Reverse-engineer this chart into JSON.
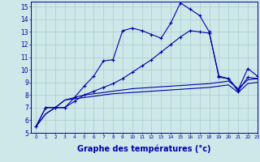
{
  "background_color": "#cce8e8",
  "grid_color": "#aacccc",
  "line_color": "#0000aa",
  "xlabel": "Graphe des températures (°c)",
  "xlabel_fontsize": 7,
  "xlim": [
    -0.5,
    23
  ],
  "ylim": [
    5,
    15.4
  ],
  "yticks": [
    5,
    6,
    7,
    8,
    9,
    10,
    11,
    12,
    13,
    14,
    15
  ],
  "xticks": [
    0,
    1,
    2,
    3,
    4,
    5,
    6,
    7,
    8,
    9,
    10,
    11,
    12,
    13,
    14,
    15,
    16,
    17,
    18,
    19,
    20,
    21,
    22,
    23
  ],
  "hours": [
    0,
    1,
    2,
    3,
    4,
    5,
    6,
    7,
    8,
    9,
    10,
    11,
    12,
    13,
    14,
    15,
    16,
    17,
    18,
    19,
    20,
    21,
    22,
    23
  ],
  "line1": [
    5.5,
    7.0,
    7.0,
    7.0,
    7.8,
    8.7,
    9.5,
    10.7,
    10.8,
    13.1,
    13.3,
    13.1,
    12.8,
    12.5,
    13.7,
    15.3,
    14.8,
    14.3,
    13.0,
    9.4,
    9.3,
    8.4,
    10.1,
    9.5
  ],
  "line2": [
    5.5,
    7.0,
    7.0,
    7.0,
    7.5,
    8.0,
    8.3,
    8.6,
    8.9,
    9.3,
    9.8,
    10.3,
    10.8,
    11.4,
    12.0,
    12.6,
    13.1,
    13.0,
    12.9,
    9.5,
    9.3,
    8.3,
    9.4,
    9.3
  ],
  "line3": [
    5.5,
    6.5,
    7.0,
    7.6,
    7.8,
    8.0,
    8.1,
    8.2,
    8.3,
    8.4,
    8.5,
    8.55,
    8.6,
    8.65,
    8.7,
    8.75,
    8.8,
    8.85,
    8.9,
    9.0,
    9.1,
    8.5,
    9.2,
    9.3
  ],
  "line4": [
    5.5,
    6.5,
    7.0,
    7.6,
    7.7,
    7.8,
    7.9,
    8.0,
    8.1,
    8.15,
    8.2,
    8.25,
    8.3,
    8.35,
    8.4,
    8.45,
    8.5,
    8.55,
    8.6,
    8.7,
    8.8,
    8.2,
    8.9,
    9.0
  ]
}
